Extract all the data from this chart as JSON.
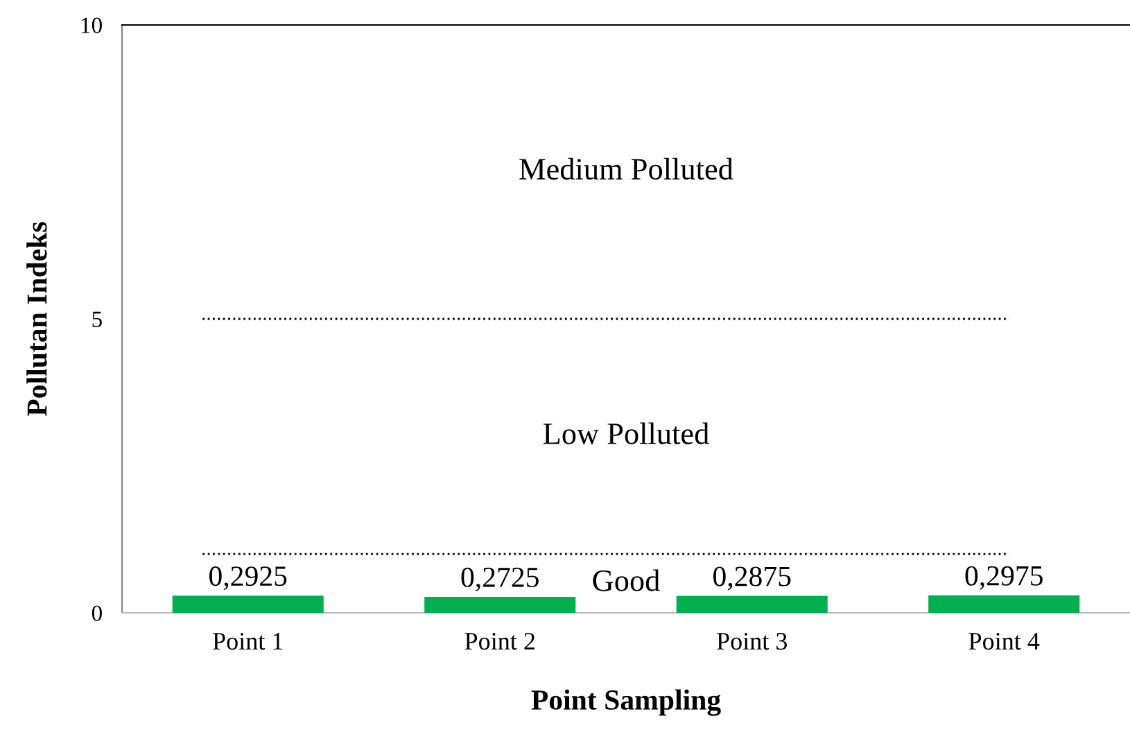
{
  "chart_data": {
    "type": "bar",
    "xlabel": "Point Sampling",
    "ylabel": "Pollutan Indeks",
    "categories": [
      "Point 1",
      "Point 2",
      "Point 3",
      "Point 4"
    ],
    "values": [
      0.2925,
      0.2725,
      0.2875,
      0.2975
    ],
    "value_labels": [
      "0,2925",
      "0,2725",
      "0,2875",
      "0,2975"
    ],
    "color": "#00b050",
    "ylim": [
      0,
      10
    ],
    "yticks": [
      0,
      5,
      10
    ],
    "grid": false,
    "legend": false,
    "ref_lines": [
      {
        "axis": "y",
        "value": 1,
        "line_style": "dotted",
        "color": "#000000"
      },
      {
        "axis": "y",
        "value": 5,
        "line_style": "dotted",
        "color": "#000000"
      }
    ],
    "annotations": [
      "Good",
      "Low Polluted",
      "Medium Polluted"
    ]
  }
}
